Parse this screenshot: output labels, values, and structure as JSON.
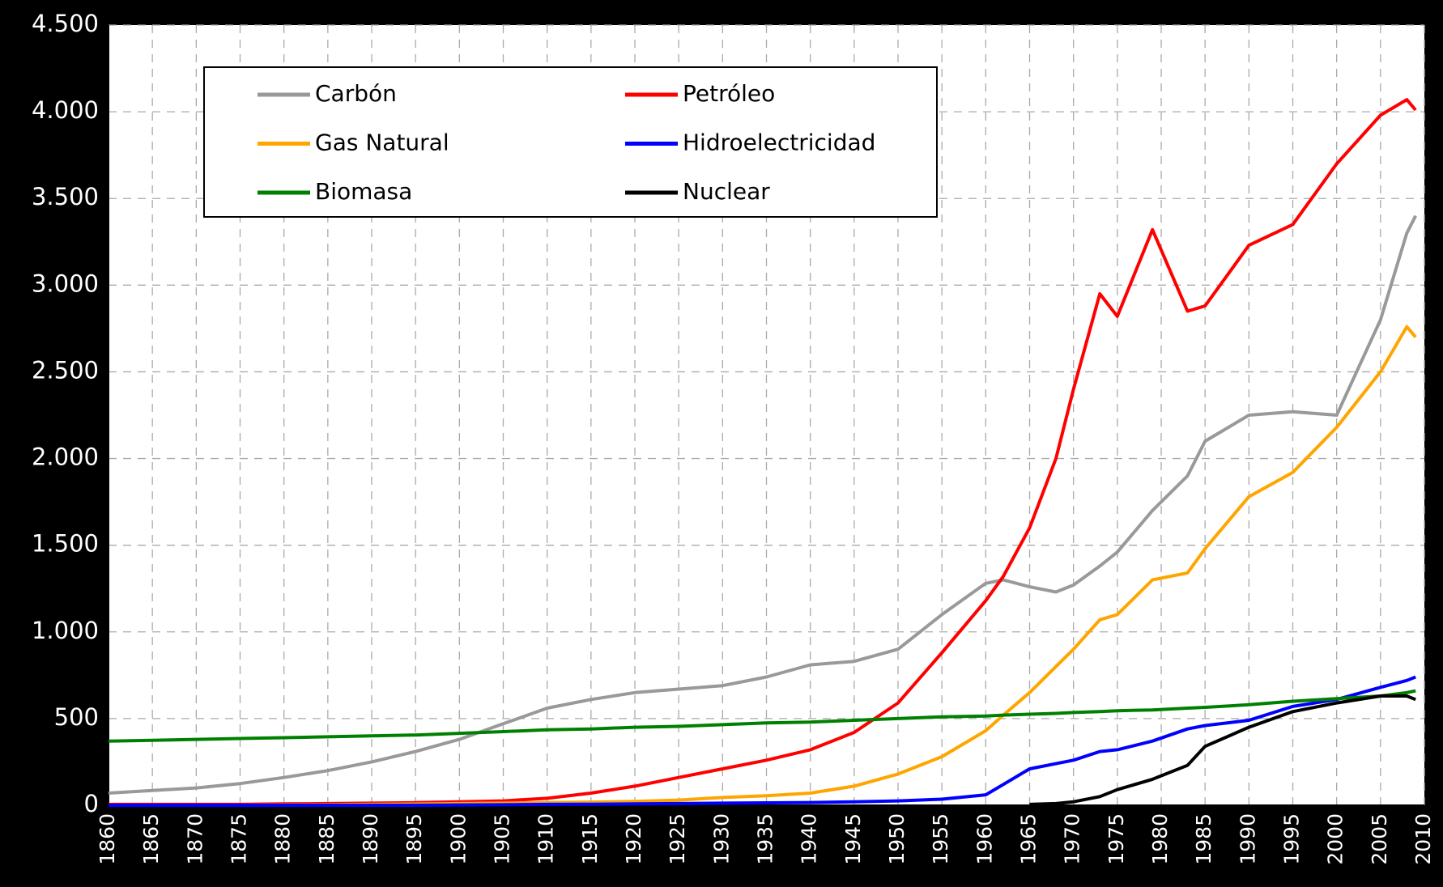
{
  "chart_data": {
    "type": "line",
    "x": [
      1860,
      1865,
      1870,
      1875,
      1880,
      1885,
      1890,
      1895,
      1900,
      1905,
      1910,
      1915,
      1920,
      1925,
      1930,
      1935,
      1940,
      1945,
      1950,
      1955,
      1960,
      1962,
      1965,
      1968,
      1970,
      1973,
      1975,
      1979,
      1983,
      1985,
      1990,
      1995,
      2000,
      2005,
      2008,
      2009
    ],
    "series": [
      {
        "name": "Carbón",
        "color": "#999999",
        "values": [
          70,
          85,
          100,
          125,
          160,
          200,
          250,
          310,
          380,
          470,
          560,
          610,
          650,
          670,
          690,
          740,
          810,
          830,
          900,
          1100,
          1280,
          1300,
          1260,
          1230,
          1270,
          1380,
          1460,
          1700,
          1900,
          2100,
          2250,
          2270,
          2250,
          2800,
          3300,
          3400
        ]
      },
      {
        "name": "Petróleo",
        "color": "#ff0000",
        "values": [
          5,
          5,
          5,
          5,
          8,
          10,
          12,
          15,
          20,
          25,
          40,
          70,
          110,
          160,
          210,
          260,
          320,
          420,
          590,
          880,
          1180,
          1320,
          1600,
          2000,
          2400,
          2950,
          2820,
          3320,
          2850,
          2880,
          3230,
          3350,
          3700,
          3980,
          4070,
          4010
        ]
      },
      {
        "name": "Gas Natural",
        "color": "#ffa500",
        "values": [
          0,
          0,
          0,
          0,
          2,
          3,
          5,
          7,
          10,
          12,
          15,
          18,
          22,
          30,
          45,
          55,
          70,
          110,
          180,
          280,
          430,
          520,
          650,
          800,
          900,
          1070,
          1100,
          1300,
          1340,
          1480,
          1780,
          1920,
          2180,
          2500,
          2760,
          2700
        ]
      },
      {
        "name": "Hidroelectricidad",
        "color": "#0000ff",
        "values": [
          0,
          0,
          0,
          0,
          0,
          0,
          0,
          0,
          2,
          3,
          5,
          6,
          8,
          10,
          12,
          14,
          16,
          20,
          25,
          35,
          60,
          120,
          210,
          240,
          260,
          310,
          320,
          370,
          440,
          460,
          490,
          570,
          610,
          680,
          720,
          740
        ]
      },
      {
        "name": "Biomasa",
        "color": "#008000",
        "values": [
          370,
          375,
          380,
          385,
          390,
          395,
          400,
          405,
          415,
          425,
          435,
          440,
          450,
          455,
          465,
          475,
          480,
          490,
          500,
          510,
          515,
          520,
          525,
          530,
          535,
          540,
          545,
          550,
          560,
          565,
          580,
          600,
          615,
          630,
          650,
          660
        ]
      },
      {
        "name": "Nuclear",
        "color": "#000000",
        "values": [
          null,
          null,
          null,
          null,
          null,
          null,
          null,
          null,
          null,
          null,
          null,
          null,
          null,
          null,
          null,
          null,
          null,
          null,
          null,
          null,
          null,
          null,
          5,
          10,
          20,
          50,
          90,
          150,
          230,
          340,
          450,
          540,
          590,
          630,
          630,
          610
        ]
      }
    ],
    "xlim": [
      1860,
      2010
    ],
    "xticks": [
      1860,
      1865,
      1870,
      1875,
      1880,
      1885,
      1890,
      1895,
      1900,
      1905,
      1910,
      1915,
      1920,
      1925,
      1930,
      1935,
      1940,
      1945,
      1950,
      1955,
      1960,
      1965,
      1970,
      1975,
      1980,
      1985,
      1990,
      1995,
      2000,
      2005,
      2010
    ],
    "ylim": [
      0,
      4500
    ],
    "yticks": [
      0,
      500,
      {
        "value": 1000,
        "label": "1.000"
      },
      {
        "value": 1500,
        "label": "1.500"
      },
      {
        "value": 2000,
        "label": "2.000"
      },
      {
        "value": 2500,
        "label": "2.500"
      },
      {
        "value": 3000,
        "label": "3.000"
      },
      {
        "value": 3500,
        "label": "3.500"
      },
      {
        "value": 4000,
        "label": "4.000"
      },
      {
        "value": 4500,
        "label": "4.500"
      }
    ],
    "grid": true
  }
}
